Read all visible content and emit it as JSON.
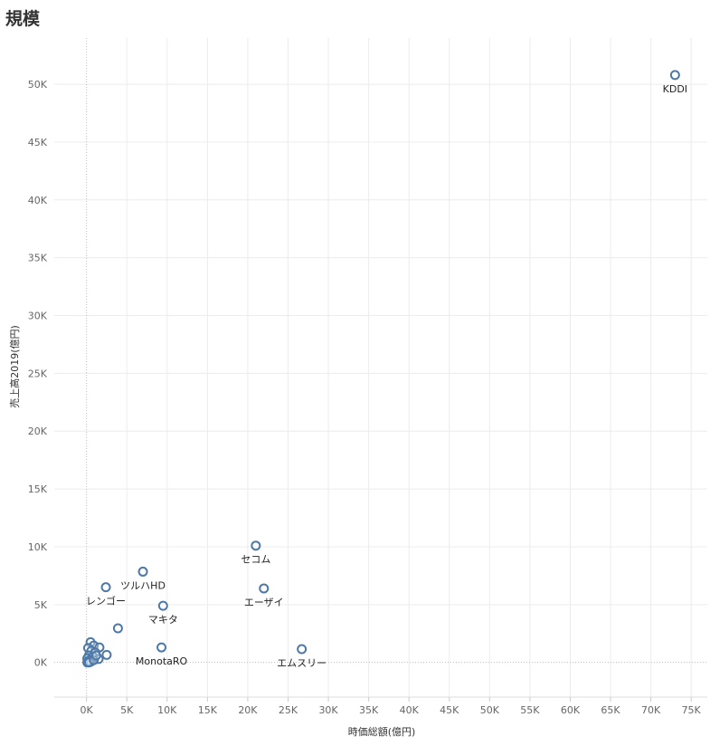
{
  "title": "規模",
  "chart_data": {
    "type": "scatter",
    "title": "規模",
    "xlabel": "時価総額(億円)",
    "ylabel": "売上高2019(億円)",
    "xlim": [
      -4000,
      77000
    ],
    "ylim": [
      -3000,
      54000
    ],
    "x_ticks": [
      0,
      5000,
      10000,
      15000,
      20000,
      25000,
      30000,
      35000,
      40000,
      45000,
      50000,
      55000,
      60000,
      65000,
      70000,
      75000
    ],
    "x_tick_labels": [
      "0K",
      "5K",
      "10K",
      "15K",
      "20K",
      "25K",
      "30K",
      "35K",
      "40K",
      "45K",
      "50K",
      "55K",
      "60K",
      "65K",
      "70K",
      "75K"
    ],
    "y_ticks": [
      0,
      5000,
      10000,
      15000,
      20000,
      25000,
      30000,
      35000,
      40000,
      45000,
      50000
    ],
    "y_tick_labels": [
      "0K",
      "5K",
      "10K",
      "15K",
      "20K",
      "25K",
      "30K",
      "35K",
      "40K",
      "45K",
      "50K"
    ],
    "grid": true,
    "marker_color": "#4e79a7",
    "points": [
      {
        "x": 73000,
        "y": 50800,
        "label": "KDDI"
      },
      {
        "x": 21000,
        "y": 10100,
        "label": "セコム"
      },
      {
        "x": 22000,
        "y": 6400,
        "label": "エーザイ"
      },
      {
        "x": 26700,
        "y": 1150,
        "label": "エムスリー"
      },
      {
        "x": 7000,
        "y": 7850,
        "label": "ツルハHD"
      },
      {
        "x": 2400,
        "y": 6500,
        "label": "レンゴー"
      },
      {
        "x": 9500,
        "y": 4900,
        "label": "マキタ"
      },
      {
        "x": 9300,
        "y": 1300,
        "label": "MonotaRO"
      },
      {
        "x": 3900,
        "y": 2950,
        "label": ""
      },
      {
        "x": 500,
        "y": 1750,
        "label": ""
      },
      {
        "x": 900,
        "y": 1450,
        "label": ""
      },
      {
        "x": 1600,
        "y": 1300,
        "label": ""
      },
      {
        "x": 200,
        "y": 1250,
        "label": ""
      },
      {
        "x": 600,
        "y": 1000,
        "label": ""
      },
      {
        "x": 1100,
        "y": 850,
        "label": ""
      },
      {
        "x": 2500,
        "y": 650,
        "label": ""
      },
      {
        "x": 300,
        "y": 600,
        "label": ""
      },
      {
        "x": 800,
        "y": 500,
        "label": ""
      },
      {
        "x": 1500,
        "y": 300,
        "label": ""
      },
      {
        "x": 100,
        "y": 350,
        "label": ""
      },
      {
        "x": 400,
        "y": 200,
        "label": ""
      },
      {
        "x": 700,
        "y": 150,
        "label": ""
      },
      {
        "x": 200,
        "y": 100,
        "label": ""
      },
      {
        "x": 500,
        "y": 50,
        "label": ""
      },
      {
        "x": 100,
        "y": 0,
        "label": ""
      },
      {
        "x": 300,
        "y": 0,
        "label": ""
      },
      {
        "x": 900,
        "y": 200,
        "label": ""
      },
      {
        "x": 1200,
        "y": 600,
        "label": ""
      }
    ]
  }
}
